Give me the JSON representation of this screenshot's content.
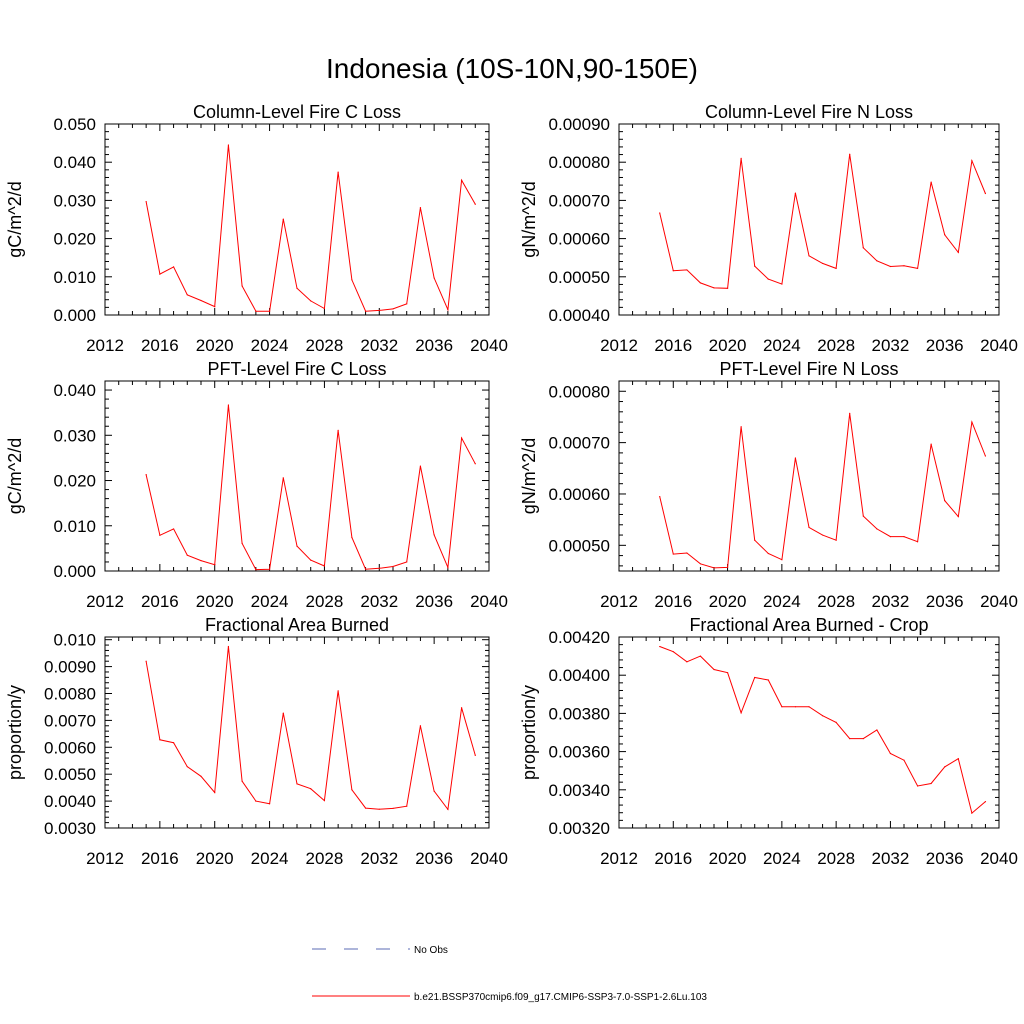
{
  "figure_title": "Indonesia (10S-10N,90-150E)",
  "colors": {
    "model": "#ff0000",
    "obs": "#5b6bb5",
    "axis": "#000000"
  },
  "legend": {
    "obs_label": "No Obs",
    "model_label": "b.e21.BSSP370cmip6.f09_g17.CMIP6-SSP3-7.0-SSP1-2.6Lu.103"
  },
  "chart_data": [
    {
      "type": "line",
      "title": "Column-Level Fire C Loss",
      "ylabel": "gC/m^2/d",
      "xlim": [
        2012,
        2040
      ],
      "xticks": [
        2012,
        2016,
        2020,
        2024,
        2028,
        2032,
        2036,
        2040
      ],
      "ylim": [
        0.0,
        0.05
      ],
      "yticks": [
        0.0,
        0.01,
        0.02,
        0.03,
        0.04,
        0.05
      ],
      "ytick_labels": [
        "0.000",
        "0.010",
        "0.020",
        "0.030",
        "0.040",
        "0.050"
      ],
      "x": [
        2015,
        2016,
        2017,
        2018,
        2019,
        2020,
        2021,
        2022,
        2023,
        2024,
        2025,
        2026,
        2027,
        2028,
        2029,
        2030,
        2031,
        2032,
        2033,
        2034,
        2035,
        2036,
        2037,
        2038,
        2039
      ],
      "series": [
        {
          "values": [
            0.0297,
            0.0107,
            0.0126,
            0.0053,
            0.0038,
            0.0022,
            0.0445,
            0.0076,
            0.001,
            0.001,
            0.0251,
            0.007,
            0.0037,
            0.0017,
            0.0374,
            0.0092,
            0.001,
            0.0012,
            0.0016,
            0.0029,
            0.0281,
            0.0097,
            0.0014,
            0.0353,
            0.029
          ]
        }
      ]
    },
    {
      "type": "line",
      "title": "Column-Level Fire N Loss",
      "ylabel": "gN/m^2/d",
      "xlim": [
        2012,
        2040
      ],
      "xticks": [
        2012,
        2016,
        2020,
        2024,
        2028,
        2032,
        2036,
        2040
      ],
      "ylim": [
        0.0004,
        0.0009
      ],
      "yticks": [
        0.0004,
        0.0005,
        0.0006,
        0.0007,
        0.0008,
        0.0009
      ],
      "ytick_labels": [
        "0.00040",
        "0.00050",
        "0.00060",
        "0.00070",
        "0.00080",
        "0.00090"
      ],
      "x": [
        2015,
        2016,
        2017,
        2018,
        2019,
        2020,
        2021,
        2022,
        2023,
        2024,
        2025,
        2026,
        2027,
        2028,
        2029,
        2030,
        2031,
        2032,
        2033,
        2034,
        2035,
        2036,
        2037,
        2038,
        2039
      ],
      "series": [
        {
          "values": [
            0.000667,
            0.000516,
            0.000518,
            0.000484,
            0.000471,
            0.00047,
            0.00081,
            0.000528,
            0.000494,
            0.000481,
            0.000719,
            0.000555,
            0.000535,
            0.000522,
            0.000821,
            0.000576,
            0.000542,
            0.000527,
            0.000529,
            0.000522,
            0.000748,
            0.00061,
            0.000564,
            0.000804,
            0.000718
          ]
        }
      ]
    },
    {
      "type": "line",
      "title": "PFT-Level Fire C Loss",
      "ylabel": "gC/m^2/d",
      "xlim": [
        2012,
        2040
      ],
      "xticks": [
        2012,
        2016,
        2020,
        2024,
        2028,
        2032,
        2036,
        2040
      ],
      "ylim": [
        0.0,
        0.042
      ],
      "yticks": [
        0.0,
        0.01,
        0.02,
        0.03,
        0.04
      ],
      "ytick_labels": [
        "0.000",
        "0.010",
        "0.020",
        "0.030",
        "0.040"
      ],
      "x": [
        2015,
        2016,
        2017,
        2018,
        2019,
        2020,
        2021,
        2022,
        2023,
        2024,
        2025,
        2026,
        2027,
        2028,
        2029,
        2030,
        2031,
        2032,
        2033,
        2034,
        2035,
        2036,
        2037,
        2038,
        2039
      ],
      "series": [
        {
          "values": [
            0.0213,
            0.0079,
            0.0093,
            0.0035,
            0.0023,
            0.0014,
            0.0367,
            0.0061,
            0.0003,
            0.0004,
            0.0206,
            0.0055,
            0.0024,
            0.0011,
            0.0311,
            0.0074,
            0.0004,
            0.0006,
            0.001,
            0.002,
            0.0232,
            0.008,
            0.0008,
            0.0294,
            0.0237
          ]
        }
      ]
    },
    {
      "type": "line",
      "title": "PFT-Level Fire N Loss",
      "ylabel": "gN/m^2/d",
      "xlim": [
        2012,
        2040
      ],
      "xticks": [
        2012,
        2016,
        2020,
        2024,
        2028,
        2032,
        2036,
        2040
      ],
      "ylim": [
        0.00045,
        0.00082
      ],
      "yticks": [
        0.0005,
        0.0006,
        0.0007,
        0.0008
      ],
      "ytick_labels": [
        "0.00050",
        "0.00060",
        "0.00070",
        "0.00080"
      ],
      "x": [
        2015,
        2016,
        2017,
        2018,
        2019,
        2020,
        2021,
        2022,
        2023,
        2024,
        2025,
        2026,
        2027,
        2028,
        2029,
        2030,
        2031,
        2032,
        2033,
        2034,
        2035,
        2036,
        2037,
        2038,
        2039
      ],
      "series": [
        {
          "values": [
            0.000595,
            0.000483,
            0.000485,
            0.000464,
            0.000456,
            0.000457,
            0.000731,
            0.00051,
            0.000484,
            0.000472,
            0.00067,
            0.000535,
            0.00052,
            0.00051,
            0.000757,
            0.000557,
            0.000532,
            0.000517,
            0.000517,
            0.000507,
            0.000697,
            0.000587,
            0.000556,
            0.00074,
            0.000674
          ]
        }
      ]
    },
    {
      "type": "line",
      "title": "Fractional Area Burned",
      "ylabel": "proportion/y",
      "xlim": [
        2012,
        2040
      ],
      "xticks": [
        2012,
        2016,
        2020,
        2024,
        2028,
        2032,
        2036,
        2040
      ],
      "ylim": [
        0.003,
        0.0101
      ],
      "yticks": [
        0.003,
        0.004,
        0.005,
        0.006,
        0.007,
        0.008,
        0.009,
        0.01
      ],
      "ytick_labels": [
        "0.0030",
        "0.0040",
        "0.0050",
        "0.0060",
        "0.0070",
        "0.0080",
        "0.0090",
        "0.010"
      ],
      "x": [
        2015,
        2016,
        2017,
        2018,
        2019,
        2020,
        2021,
        2022,
        2023,
        2024,
        2025,
        2026,
        2027,
        2028,
        2029,
        2030,
        2031,
        2032,
        2033,
        2034,
        2035,
        2036,
        2037,
        2038,
        2039
      ],
      "series": [
        {
          "values": [
            0.0092,
            0.00628,
            0.00617,
            0.00528,
            0.00492,
            0.00432,
            0.00975,
            0.00474,
            0.004,
            0.0039,
            0.00727,
            0.00464,
            0.00446,
            0.00402,
            0.0081,
            0.00442,
            0.00374,
            0.0037,
            0.00373,
            0.00381,
            0.0068,
            0.00437,
            0.00369,
            0.00747,
            0.0057
          ]
        }
      ]
    },
    {
      "type": "line",
      "title": "Fractional Area Burned - Crop",
      "ylabel": "proportion/y",
      "xlim": [
        2012,
        2040
      ],
      "xticks": [
        2012,
        2016,
        2020,
        2024,
        2028,
        2032,
        2036,
        2040
      ],
      "ylim": [
        0.0032,
        0.0042
      ],
      "yticks": [
        0.0032,
        0.0034,
        0.0036,
        0.0038,
        0.004,
        0.0042
      ],
      "ytick_labels": [
        "0.00320",
        "0.00340",
        "0.00360",
        "0.00380",
        "0.00400",
        "0.00420"
      ],
      "x": [
        2015,
        2016,
        2017,
        2018,
        2019,
        2020,
        2021,
        2022,
        2023,
        2024,
        2025,
        2026,
        2027,
        2028,
        2029,
        2030,
        2031,
        2032,
        2033,
        2034,
        2035,
        2036,
        2037,
        2038,
        2039
      ],
      "series": [
        {
          "values": [
            0.00415,
            0.004123,
            0.00407,
            0.0041,
            0.00403,
            0.004013,
            0.003803,
            0.003988,
            0.003975,
            0.003835,
            0.003835,
            0.003835,
            0.003788,
            0.003753,
            0.003668,
            0.003668,
            0.003713,
            0.00359,
            0.003555,
            0.00342,
            0.003433,
            0.00352,
            0.003563,
            0.003278,
            0.003338
          ]
        }
      ]
    }
  ]
}
